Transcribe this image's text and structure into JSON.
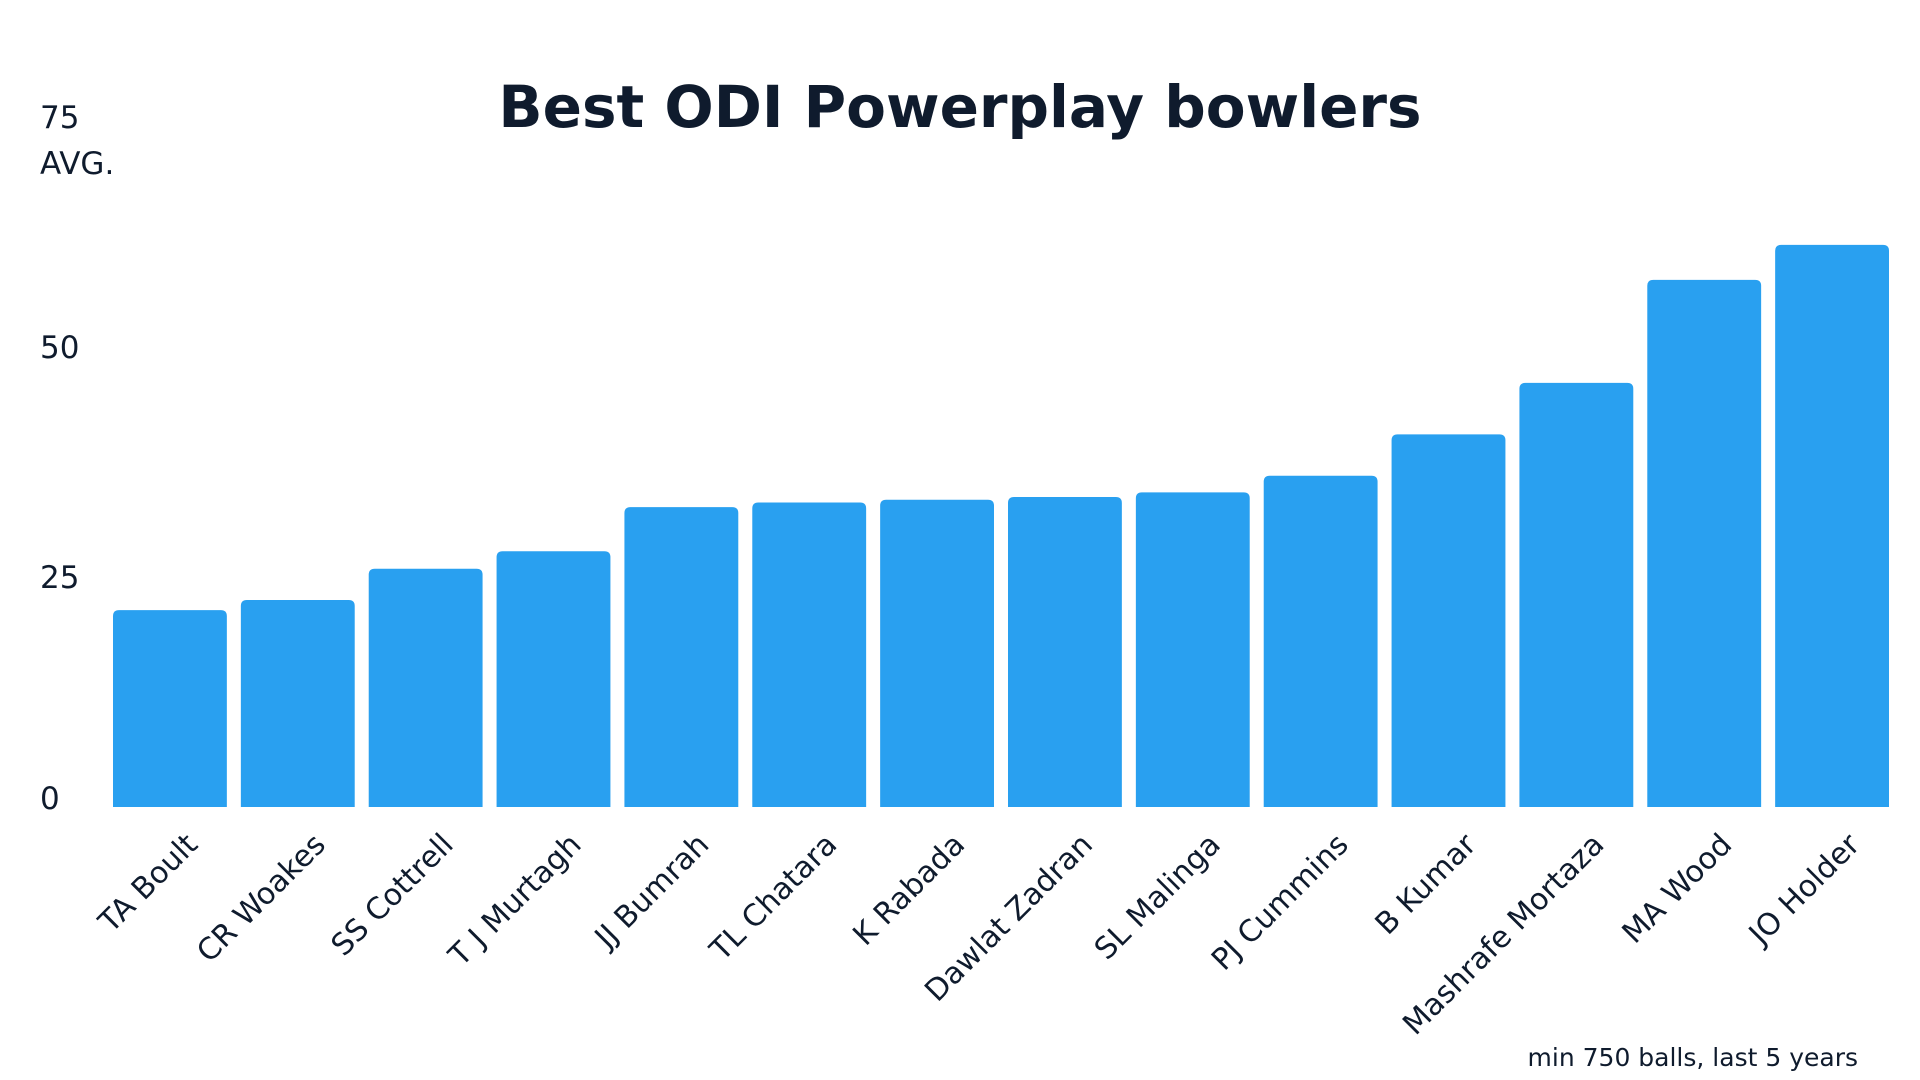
{
  "chart_data": {
    "type": "bar",
    "title": "Best ODI Powerplay bowlers",
    "ylabel": "AVG.",
    "xlabel": "",
    "categories": [
      "TA Boult",
      "CR Woakes",
      "SS Cottrell",
      "T J Murtagh",
      "JJ Bumrah",
      "TL Chatara",
      "K Rabada",
      "Dawlat Zadran",
      "SL Malinga",
      "PJ Cummins",
      "B Kumar",
      "Mashrafe Mortaza",
      "MA Wood",
      "JO Holder"
    ],
    "values": [
      21.4,
      22.5,
      25.9,
      27.8,
      32.6,
      33.1,
      33.4,
      33.7,
      34.2,
      36.0,
      40.5,
      46.1,
      57.3,
      61.1
    ],
    "ylim": [
      0,
      75
    ],
    "yticks": [
      "0",
      "25",
      "50",
      "75"
    ],
    "bar_color": "#29a0f0",
    "grid": false,
    "legend": "none",
    "footnote": "min 750 balls, last 5 years"
  }
}
